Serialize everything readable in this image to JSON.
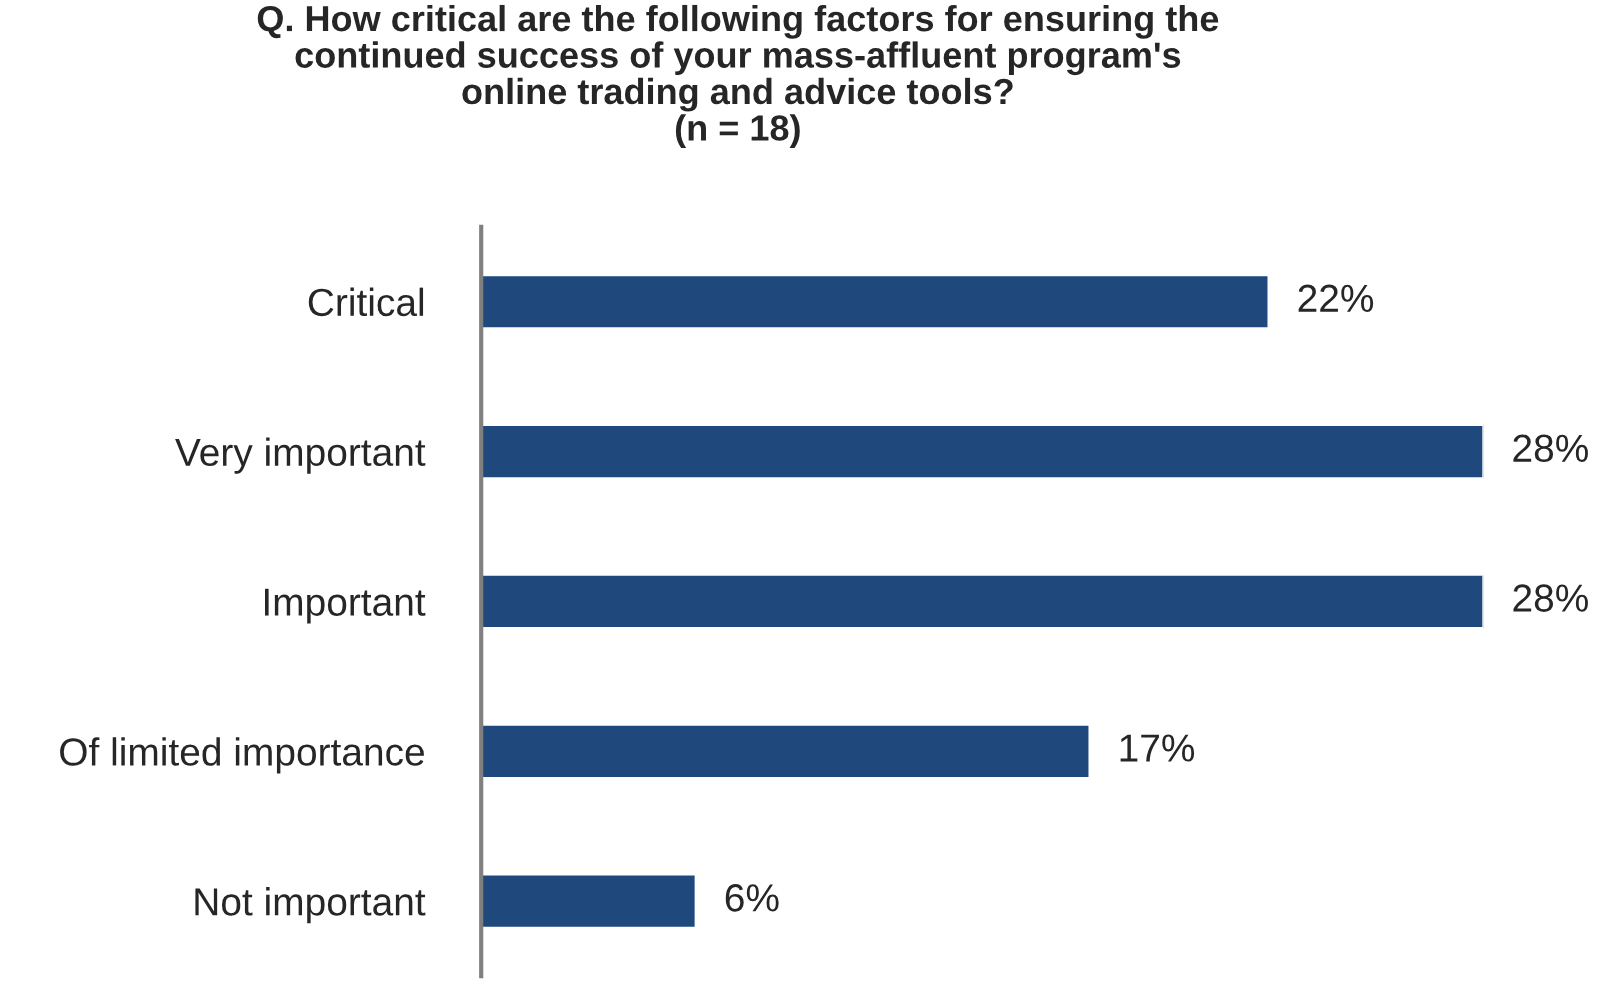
{
  "chart_data": {
    "type": "bar",
    "orientation": "horizontal",
    "title": "Q. How critical are the following factors for ensuring the\ncontinued success of your mass-affluent program's\nonline trading and advice tools?\n(n = 18)",
    "categories": [
      "Critical",
      "Very important",
      "Important",
      "Of limited importance",
      "Not important"
    ],
    "values": [
      22,
      28,
      28,
      17,
      6
    ],
    "value_labels": [
      "22%",
      "28%",
      "28%",
      "17%",
      "6%"
    ],
    "color": "#1f497d",
    "grid": false,
    "legend": false
  }
}
